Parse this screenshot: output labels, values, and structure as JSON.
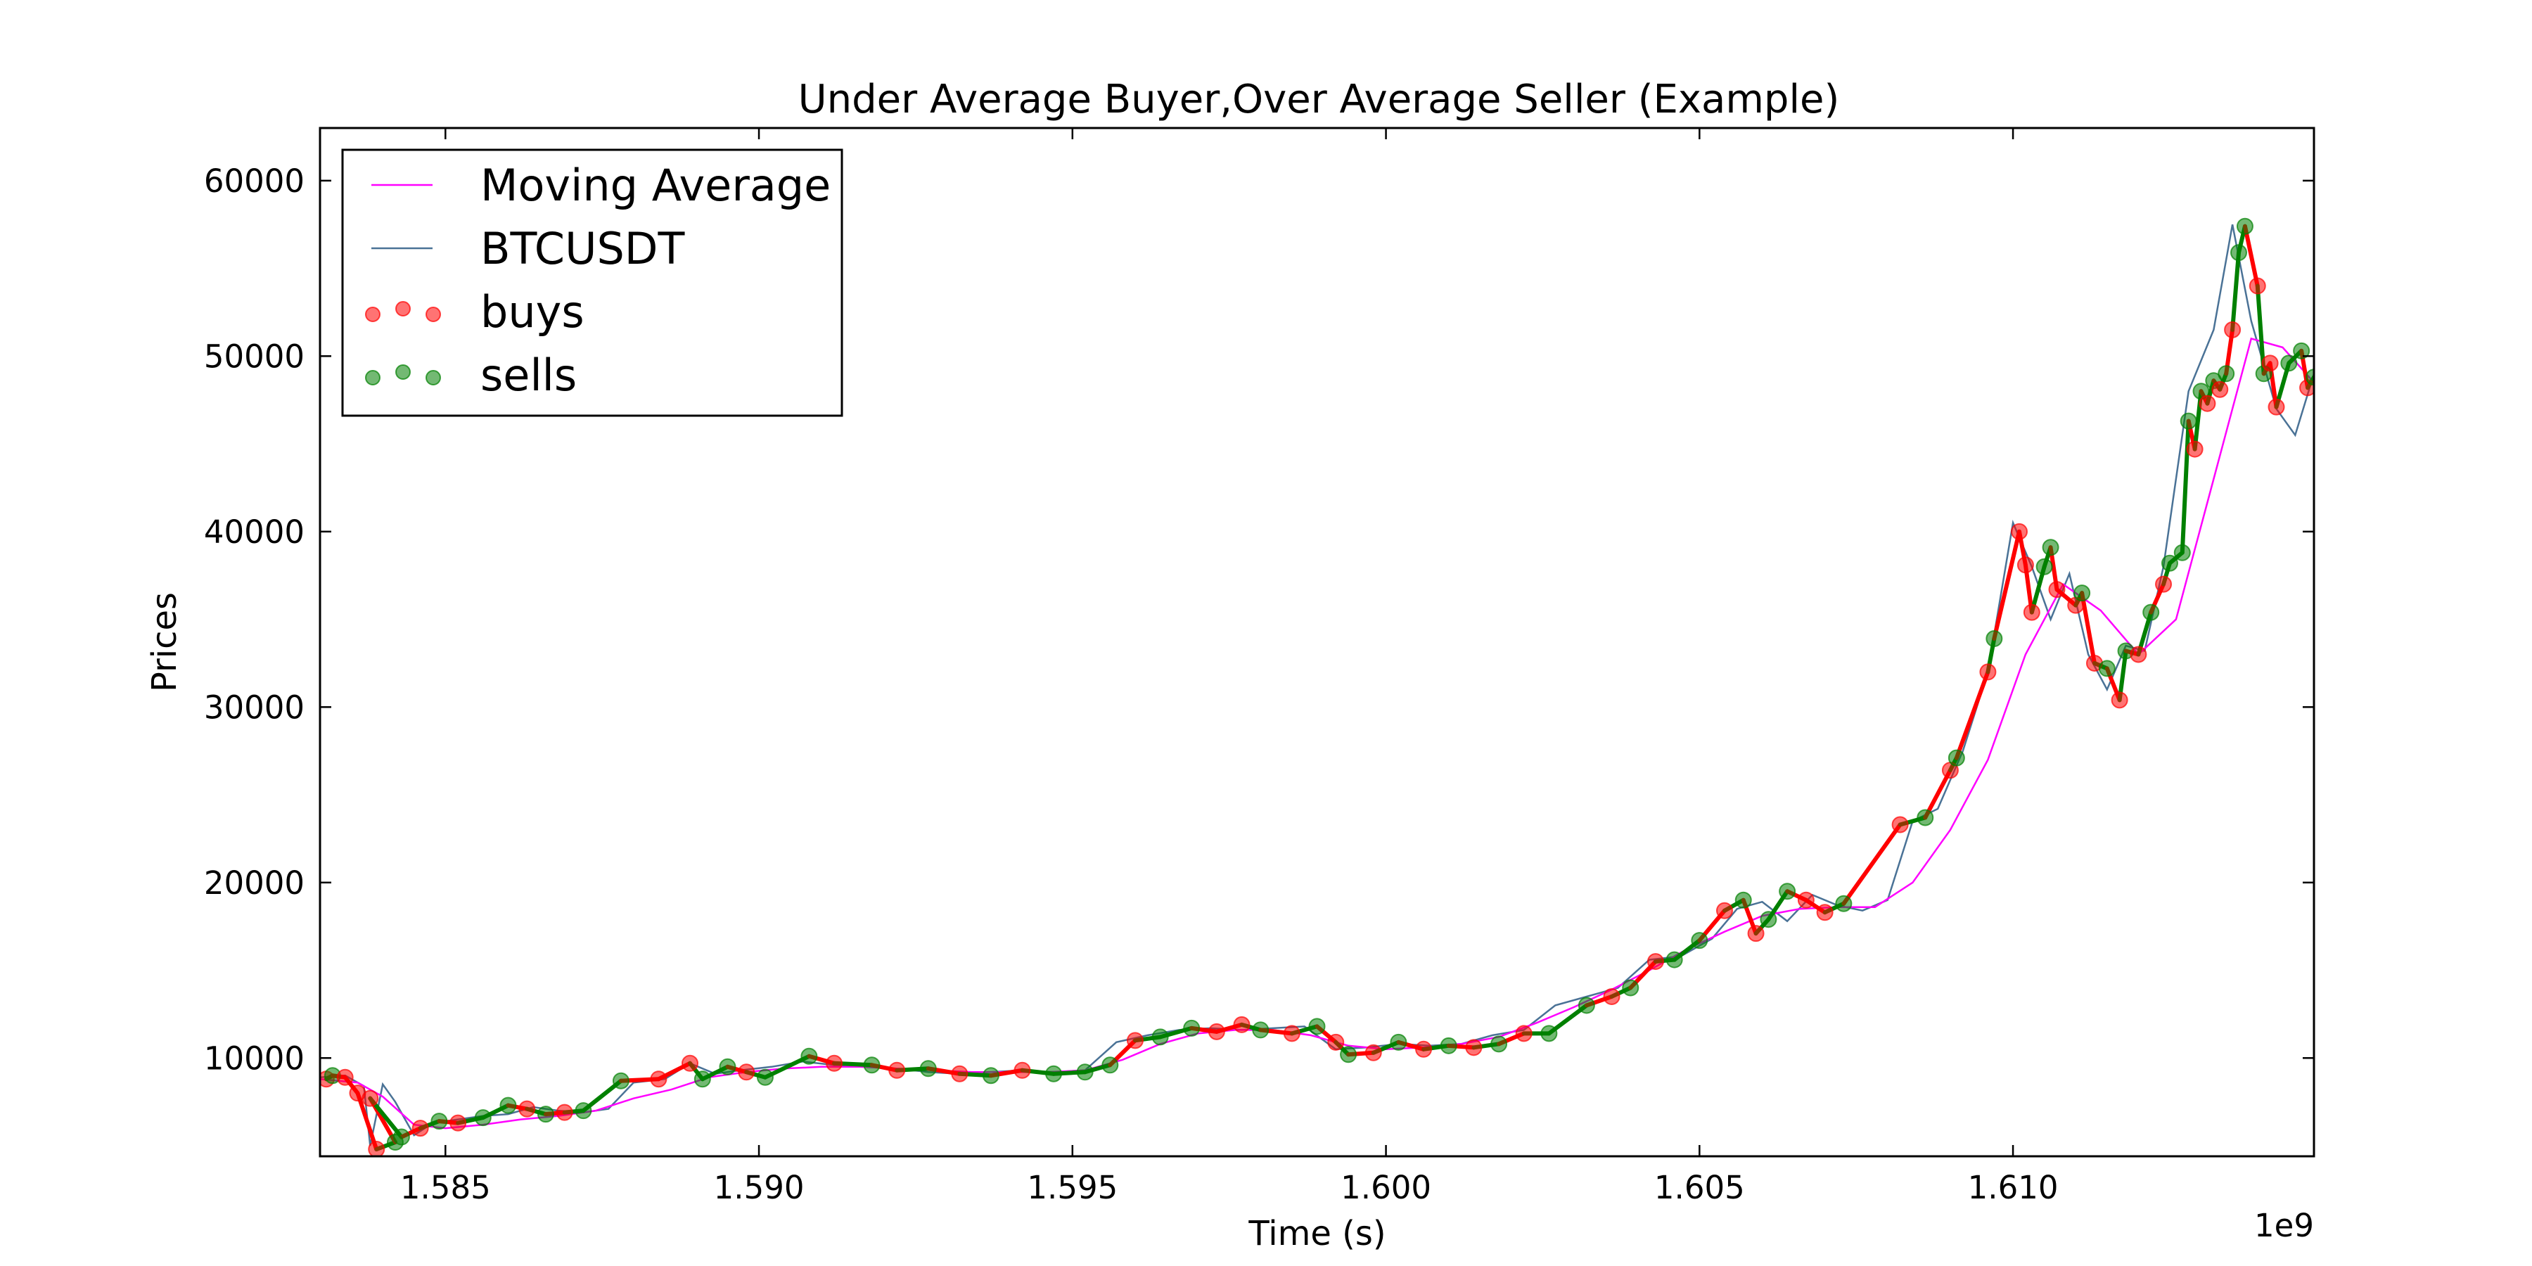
{
  "chart_data": {
    "type": "line",
    "title": "Under Average Buyer,Over Average Seller (Example)",
    "xlabel": "Time (s)",
    "ylabel": "Prices",
    "x_offset_label": "1e9",
    "xlim": [
      1.583,
      1.6148
    ],
    "ylim": [
      4400,
      63000
    ],
    "x_ticks": [
      1.585,
      1.59,
      1.595,
      1.6,
      1.605,
      1.61
    ],
    "x_tick_labels": [
      "1.585",
      "1.590",
      "1.595",
      "1.600",
      "1.605",
      "1.610"
    ],
    "y_ticks": [
      10000,
      20000,
      30000,
      40000,
      50000,
      60000
    ],
    "y_tick_labels": [
      "10000",
      "20000",
      "30000",
      "40000",
      "50000",
      "60000"
    ],
    "grid": false,
    "legend_position": "top-left",
    "legend": [
      {
        "label": "Moving Average",
        "kind": "line",
        "color": "#ff00ff"
      },
      {
        "label": "BTCUSDT",
        "kind": "line",
        "color": "#4a7296"
      },
      {
        "label": "buys",
        "kind": "scatter",
        "color": "#ff0000"
      },
      {
        "label": "sells",
        "kind": "scatter",
        "color": "#008000"
      }
    ],
    "series": [
      {
        "name": "BTCUSDT",
        "color": "#4a7296",
        "points": [
          [
            1.583,
            8900
          ],
          [
            1.5834,
            9000
          ],
          [
            1.5837,
            8400
          ],
          [
            1.5838,
            5000
          ],
          [
            1.584,
            8500
          ],
          [
            1.5842,
            7500
          ],
          [
            1.5845,
            5600
          ],
          [
            1.5848,
            6300
          ],
          [
            1.5852,
            6500
          ],
          [
            1.5856,
            6700
          ],
          [
            1.586,
            6800
          ],
          [
            1.5864,
            7200
          ],
          [
            1.5868,
            7000
          ],
          [
            1.5872,
            6900
          ],
          [
            1.5876,
            7100
          ],
          [
            1.588,
            8600
          ],
          [
            1.5885,
            8800
          ],
          [
            1.5889,
            9700
          ],
          [
            1.5893,
            9100
          ],
          [
            1.5897,
            9300
          ],
          [
            1.5902,
            9500
          ],
          [
            1.5907,
            9800
          ],
          [
            1.5912,
            9600
          ],
          [
            1.5917,
            9500
          ],
          [
            1.5922,
            9400
          ],
          [
            1.5927,
            9200
          ],
          [
            1.5932,
            9100
          ],
          [
            1.5937,
            9200
          ],
          [
            1.5942,
            9300
          ],
          [
            1.5947,
            9200
          ],
          [
            1.5952,
            9300
          ],
          [
            1.5957,
            10900
          ],
          [
            1.5962,
            11300
          ],
          [
            1.5967,
            11600
          ],
          [
            1.5972,
            11700
          ],
          [
            1.5977,
            11600
          ],
          [
            1.5982,
            11700
          ],
          [
            1.5987,
            11800
          ],
          [
            1.5992,
            10500
          ],
          [
            1.5997,
            10600
          ],
          [
            1.6002,
            10800
          ],
          [
            1.6007,
            10700
          ],
          [
            1.6012,
            10800
          ],
          [
            1.6017,
            11300
          ],
          [
            1.6022,
            11600
          ],
          [
            1.6027,
            13000
          ],
          [
            1.6032,
            13500
          ],
          [
            1.6037,
            14000
          ],
          [
            1.6042,
            15600
          ],
          [
            1.6047,
            15800
          ],
          [
            1.6052,
            16800
          ],
          [
            1.6056,
            18500
          ],
          [
            1.606,
            18900
          ],
          [
            1.6064,
            17800
          ],
          [
            1.6068,
            19300
          ],
          [
            1.6072,
            18700
          ],
          [
            1.6076,
            18400
          ],
          [
            1.608,
            19000
          ],
          [
            1.6084,
            23500
          ],
          [
            1.6088,
            24200
          ],
          [
            1.6092,
            27500
          ],
          [
            1.6096,
            32000
          ],
          [
            1.61,
            40500
          ],
          [
            1.6103,
            38000
          ],
          [
            1.6106,
            35000
          ],
          [
            1.6109,
            37600
          ],
          [
            1.6112,
            33000
          ],
          [
            1.6115,
            31000
          ],
          [
            1.6118,
            33500
          ],
          [
            1.6121,
            33200
          ],
          [
            1.6124,
            38000
          ],
          [
            1.6128,
            48000
          ],
          [
            1.6132,
            51500
          ],
          [
            1.6135,
            57500
          ],
          [
            1.6138,
            52000
          ],
          [
            1.6142,
            47000
          ],
          [
            1.6145,
            45500
          ],
          [
            1.6148,
            49000
          ]
        ]
      },
      {
        "name": "Moving Average",
        "color": "#ff00ff",
        "points": [
          [
            1.583,
            8800
          ],
          [
            1.5836,
            8600
          ],
          [
            1.584,
            7800
          ],
          [
            1.5845,
            6200
          ],
          [
            1.585,
            6000
          ],
          [
            1.5856,
            6200
          ],
          [
            1.5862,
            6500
          ],
          [
            1.5868,
            6700
          ],
          [
            1.5874,
            7000
          ],
          [
            1.588,
            7700
          ],
          [
            1.5886,
            8200
          ],
          [
            1.5892,
            8900
          ],
          [
            1.5898,
            9200
          ],
          [
            1.5904,
            9400
          ],
          [
            1.591,
            9500
          ],
          [
            1.5916,
            9500
          ],
          [
            1.5922,
            9400
          ],
          [
            1.5928,
            9300
          ],
          [
            1.5934,
            9200
          ],
          [
            1.594,
            9200
          ],
          [
            1.5946,
            9200
          ],
          [
            1.5952,
            9300
          ],
          [
            1.5958,
            9900
          ],
          [
            1.5964,
            10800
          ],
          [
            1.597,
            11400
          ],
          [
            1.5976,
            11600
          ],
          [
            1.5982,
            11600
          ],
          [
            1.5988,
            11300
          ],
          [
            1.5994,
            10700
          ],
          [
            1.6,
            10500
          ],
          [
            1.6006,
            10600
          ],
          [
            1.6012,
            10800
          ],
          [
            1.6018,
            11200
          ],
          [
            1.6024,
            12000
          ],
          [
            1.603,
            12900
          ],
          [
            1.6036,
            13900
          ],
          [
            1.6042,
            15000
          ],
          [
            1.6048,
            16200
          ],
          [
            1.6054,
            17200
          ],
          [
            1.606,
            18100
          ],
          [
            1.6066,
            18500
          ],
          [
            1.6072,
            18600
          ],
          [
            1.6078,
            18600
          ],
          [
            1.6084,
            20000
          ],
          [
            1.609,
            23000
          ],
          [
            1.6096,
            27000
          ],
          [
            1.6102,
            33000
          ],
          [
            1.6108,
            37000
          ],
          [
            1.6114,
            35500
          ],
          [
            1.612,
            33000
          ],
          [
            1.6126,
            35000
          ],
          [
            1.6132,
            43000
          ],
          [
            1.6138,
            51000
          ],
          [
            1.6143,
            50500
          ],
          [
            1.6148,
            48500
          ]
        ]
      }
    ],
    "trades": [
      {
        "side": "buy",
        "x": 1.5831,
        "y": 8800
      },
      {
        "side": "sell",
        "x": 1.5832,
        "y": 9000
      },
      {
        "side": "buy",
        "x": 1.5834,
        "y": 8900
      },
      {
        "side": "buy",
        "x": 1.5836,
        "y": 8000
      },
      {
        "side": "buy",
        "x": 1.5839,
        "y": 4800
      },
      {
        "side": "sell",
        "x": 1.5842,
        "y": 5200
      },
      {
        "side": "buy",
        "x": 1.5838,
        "y": 7700
      },
      {
        "side": "sell",
        "x": 1.5843,
        "y": 5500
      },
      {
        "side": "buy",
        "x": 1.5846,
        "y": 6000
      },
      {
        "side": "sell",
        "x": 1.5849,
        "y": 6400
      },
      {
        "side": "buy",
        "x": 1.5852,
        "y": 6300
      },
      {
        "side": "sell",
        "x": 1.5856,
        "y": 6600
      },
      {
        "side": "sell",
        "x": 1.586,
        "y": 7300
      },
      {
        "side": "buy",
        "x": 1.5863,
        "y": 7100
      },
      {
        "side": "sell",
        "x": 1.5866,
        "y": 6800
      },
      {
        "side": "buy",
        "x": 1.5869,
        "y": 6900
      },
      {
        "side": "sell",
        "x": 1.5872,
        "y": 7000
      },
      {
        "side": "sell",
        "x": 1.5878,
        "y": 8700
      },
      {
        "side": "buy",
        "x": 1.5884,
        "y": 8800
      },
      {
        "side": "buy",
        "x": 1.5889,
        "y": 9700
      },
      {
        "side": "sell",
        "x": 1.5891,
        "y": 8800
      },
      {
        "side": "sell",
        "x": 1.5895,
        "y": 9500
      },
      {
        "side": "buy",
        "x": 1.5898,
        "y": 9200
      },
      {
        "side": "sell",
        "x": 1.5901,
        "y": 8900
      },
      {
        "side": "sell",
        "x": 1.5908,
        "y": 10100
      },
      {
        "side": "buy",
        "x": 1.5912,
        "y": 9700
      },
      {
        "side": "sell",
        "x": 1.5918,
        "y": 9600
      },
      {
        "side": "buy",
        "x": 1.5922,
        "y": 9300
      },
      {
        "side": "sell",
        "x": 1.5927,
        "y": 9400
      },
      {
        "side": "buy",
        "x": 1.5932,
        "y": 9100
      },
      {
        "side": "sell",
        "x": 1.5937,
        "y": 9000
      },
      {
        "side": "buy",
        "x": 1.5942,
        "y": 9300
      },
      {
        "side": "sell",
        "x": 1.5947,
        "y": 9100
      },
      {
        "side": "sell",
        "x": 1.5952,
        "y": 9200
      },
      {
        "side": "sell",
        "x": 1.5956,
        "y": 9600
      },
      {
        "side": "buy",
        "x": 1.596,
        "y": 11000
      },
      {
        "side": "sell",
        "x": 1.5964,
        "y": 11200
      },
      {
        "side": "sell",
        "x": 1.5969,
        "y": 11700
      },
      {
        "side": "buy",
        "x": 1.5973,
        "y": 11500
      },
      {
        "side": "buy",
        "x": 1.5977,
        "y": 11900
      },
      {
        "side": "sell",
        "x": 1.598,
        "y": 11600
      },
      {
        "side": "buy",
        "x": 1.5985,
        "y": 11400
      },
      {
        "side": "sell",
        "x": 1.5989,
        "y": 11800
      },
      {
        "side": "buy",
        "x": 1.5992,
        "y": 10900
      },
      {
        "side": "sell",
        "x": 1.5994,
        "y": 10200
      },
      {
        "side": "buy",
        "x": 1.5998,
        "y": 10300
      },
      {
        "side": "sell",
        "x": 1.6002,
        "y": 10900
      },
      {
        "side": "buy",
        "x": 1.6006,
        "y": 10500
      },
      {
        "side": "sell",
        "x": 1.601,
        "y": 10700
      },
      {
        "side": "buy",
        "x": 1.6014,
        "y": 10600
      },
      {
        "side": "sell",
        "x": 1.6018,
        "y": 10800
      },
      {
        "side": "buy",
        "x": 1.6022,
        "y": 11400
      },
      {
        "side": "sell",
        "x": 1.6026,
        "y": 11400
      },
      {
        "side": "sell",
        "x": 1.6032,
        "y": 13000
      },
      {
        "side": "buy",
        "x": 1.6036,
        "y": 13500
      },
      {
        "side": "sell",
        "x": 1.6039,
        "y": 14000
      },
      {
        "side": "buy",
        "x": 1.6043,
        "y": 15500
      },
      {
        "side": "sell",
        "x": 1.6046,
        "y": 15600
      },
      {
        "side": "sell",
        "x": 1.605,
        "y": 16700
      },
      {
        "side": "buy",
        "x": 1.6054,
        "y": 18400
      },
      {
        "side": "sell",
        "x": 1.6057,
        "y": 19000
      },
      {
        "side": "buy",
        "x": 1.6059,
        "y": 17100
      },
      {
        "side": "sell",
        "x": 1.6061,
        "y": 17900
      },
      {
        "side": "sell",
        "x": 1.6064,
        "y": 19500
      },
      {
        "side": "buy",
        "x": 1.6067,
        "y": 19000
      },
      {
        "side": "buy",
        "x": 1.607,
        "y": 18300
      },
      {
        "side": "sell",
        "x": 1.6073,
        "y": 18800
      },
      {
        "side": "buy",
        "x": 1.6082,
        "y": 23300
      },
      {
        "side": "sell",
        "x": 1.6086,
        "y": 23700
      },
      {
        "side": "buy",
        "x": 1.609,
        "y": 26400
      },
      {
        "side": "sell",
        "x": 1.6091,
        "y": 27100
      },
      {
        "side": "buy",
        "x": 1.6096,
        "y": 32000
      },
      {
        "side": "sell",
        "x": 1.6097,
        "y": 33900
      },
      {
        "side": "buy",
        "x": 1.6101,
        "y": 40000
      },
      {
        "side": "buy",
        "x": 1.6102,
        "y": 38100
      },
      {
        "side": "buy",
        "x": 1.6103,
        "y": 35400
      },
      {
        "side": "sell",
        "x": 1.6105,
        "y": 38000
      },
      {
        "side": "sell",
        "x": 1.6106,
        "y": 39100
      },
      {
        "side": "buy",
        "x": 1.6107,
        "y": 36700
      },
      {
        "side": "buy",
        "x": 1.611,
        "y": 35800
      },
      {
        "side": "sell",
        "x": 1.6111,
        "y": 36500
      },
      {
        "side": "buy",
        "x": 1.6113,
        "y": 32500
      },
      {
        "side": "sell",
        "x": 1.6115,
        "y": 32200
      },
      {
        "side": "buy",
        "x": 1.6117,
        "y": 30400
      },
      {
        "side": "sell",
        "x": 1.6118,
        "y": 33200
      },
      {
        "side": "buy",
        "x": 1.612,
        "y": 33000
      },
      {
        "side": "sell",
        "x": 1.6122,
        "y": 35400
      },
      {
        "side": "buy",
        "x": 1.6124,
        "y": 37000
      },
      {
        "side": "sell",
        "x": 1.6125,
        "y": 38200
      },
      {
        "side": "sell",
        "x": 1.6127,
        "y": 38800
      },
      {
        "side": "sell",
        "x": 1.6128,
        "y": 46300
      },
      {
        "side": "buy",
        "x": 1.6129,
        "y": 44700
      },
      {
        "side": "sell",
        "x": 1.613,
        "y": 48000
      },
      {
        "side": "buy",
        "x": 1.6131,
        "y": 47300
      },
      {
        "side": "sell",
        "x": 1.6132,
        "y": 48600
      },
      {
        "side": "buy",
        "x": 1.6133,
        "y": 48100
      },
      {
        "side": "sell",
        "x": 1.6134,
        "y": 49000
      },
      {
        "side": "buy",
        "x": 1.6135,
        "y": 51500
      },
      {
        "side": "sell",
        "x": 1.6136,
        "y": 55900
      },
      {
        "side": "sell",
        "x": 1.6137,
        "y": 57400
      },
      {
        "side": "buy",
        "x": 1.6139,
        "y": 54000
      },
      {
        "side": "sell",
        "x": 1.614,
        "y": 49000
      },
      {
        "side": "buy",
        "x": 1.6141,
        "y": 49600
      },
      {
        "side": "buy",
        "x": 1.6142,
        "y": 47100
      },
      {
        "side": "sell",
        "x": 1.6144,
        "y": 49600
      },
      {
        "side": "sell",
        "x": 1.6146,
        "y": 50300
      },
      {
        "side": "buy",
        "x": 1.6147,
        "y": 48200
      },
      {
        "side": "sell",
        "x": 1.6148,
        "y": 48800
      }
    ]
  }
}
